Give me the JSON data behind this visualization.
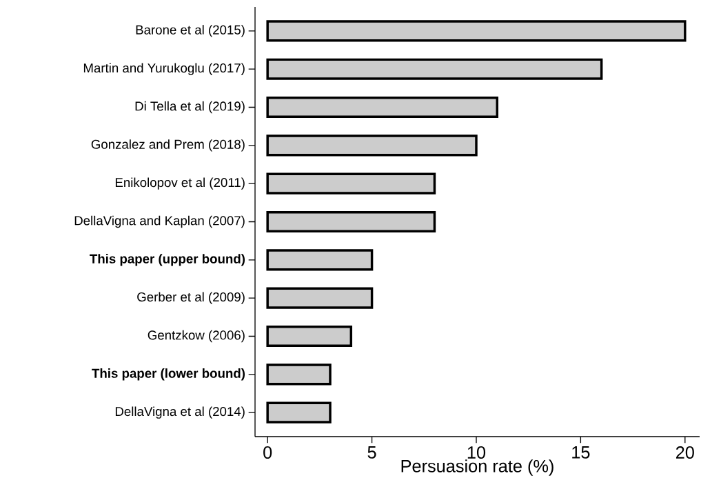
{
  "chart_data": {
    "type": "bar",
    "orientation": "horizontal",
    "categories": [
      "Barone et al (2015)",
      "Martin and Yurukoglu (2017)",
      "Di Tella et al (2019)",
      "Gonzalez and Prem (2018)",
      "Enikolopov et al (2011)",
      "DellaVigna and Kaplan (2007)",
      "**This paper (upper bound)**",
      "Gerber et al (2009)",
      "Gentzkow (2006)",
      "**This paper (lower bound)**",
      "DellaVigna et al (2014)"
    ],
    "values": [
      20,
      16,
      11,
      10,
      8,
      8,
      5,
      5,
      4,
      3,
      3
    ],
    "color": "#cccccc",
    "xlabel": "Persuasion rate (%)",
    "xlim": [
      -0.6,
      20.7
    ],
    "xticks": [
      0,
      5,
      10,
      15,
      20
    ]
  }
}
